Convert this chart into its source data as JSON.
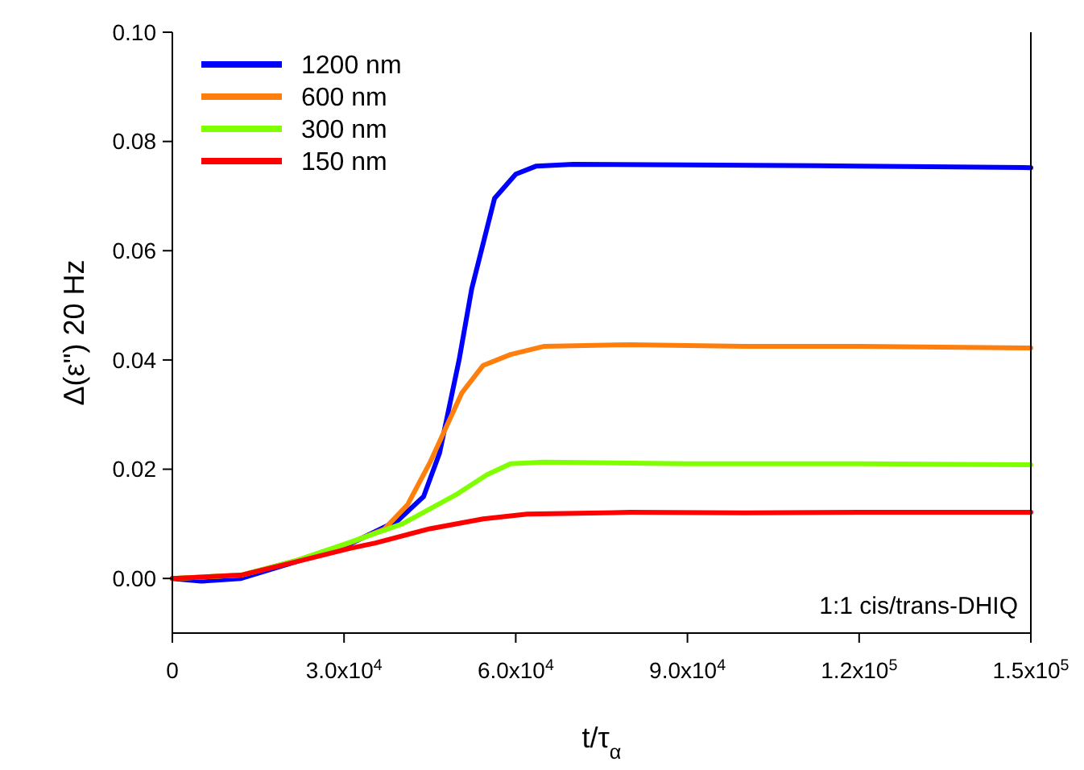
{
  "chart_data": {
    "type": "line",
    "xlabel": "t/τ$_{α}$",
    "ylabel": "Δ(ε\") 20 Hz",
    "xlim": [
      0,
      150000
    ],
    "ylim": [
      -0.01,
      0.1
    ],
    "xticks": [
      0,
      {
        "value": 30000,
        "label": "3.0x10$^{4}$"
      },
      {
        "value": 60000,
        "label": "6.0x10$^{4}$"
      },
      {
        "value": 90000,
        "label": "9.0x10$^{4}$"
      },
      {
        "value": 120000,
        "label": "1.2x10$^{5}$"
      },
      {
        "value": 150000,
        "label": "1.5x10$^{5}$"
      }
    ],
    "yticks": [
      {
        "value": 0,
        "label": "0.00"
      },
      {
        "value": 0.02,
        "label": "0.02"
      },
      {
        "value": 0.04,
        "label": "0.04"
      },
      {
        "value": 0.06,
        "label": "0.06"
      },
      {
        "value": 0.08,
        "label": "0.08"
      },
      {
        "value": 0.1,
        "label": "0.10"
      }
    ],
    "legend": "top left",
    "grid": false,
    "marker": "none",
    "line_style": "solid",
    "annotations": [
      "1:1 cis/trans-DHIQ"
    ],
    "series": [
      {
        "name": "1200 nm",
        "color": "#0000ff",
        "x": [
          0,
          5000,
          12000,
          21400,
          31000,
          39400,
          43900,
          46700,
          50100,
          52300,
          56300,
          60000,
          63600,
          70000,
          90000,
          120000,
          150000
        ],
        "values": [
          0,
          -0.0005,
          0,
          0.003,
          0.0063,
          0.0106,
          0.015,
          0.023,
          0.04,
          0.053,
          0.0696,
          0.074,
          0.0755,
          0.0758,
          0.0757,
          0.0755,
          0.0752
        ]
      },
      {
        "name": "600 nm",
        "color": "#ff7f0e",
        "x": [
          0,
          12000,
          21400,
          31000,
          37000,
          41100,
          45000,
          50600,
          54300,
          59100,
          65000,
          80000,
          100000,
          120000,
          150000
        ],
        "values": [
          0,
          0.0006,
          0.0032,
          0.0065,
          0.009,
          0.0135,
          0.0212,
          0.034,
          0.039,
          0.041,
          0.0425,
          0.0428,
          0.0425,
          0.0425,
          0.0422
        ]
      },
      {
        "name": "300 nm",
        "color": "#7fff00",
        "x": [
          0,
          12000,
          21400,
          31000,
          40200,
          49500,
          55000,
          59100,
          65000,
          90000,
          120000,
          150000
        ],
        "values": [
          0,
          0.0006,
          0.0032,
          0.0066,
          0.01,
          0.0153,
          0.019,
          0.021,
          0.0213,
          0.021,
          0.021,
          0.0208
        ]
      },
      {
        "name": "150 nm",
        "color": "#ff0000",
        "x": [
          0,
          12000,
          21400,
          31000,
          35500,
          45000,
          54300,
          62000,
          80000,
          100000,
          120000,
          150000
        ],
        "values": [
          0,
          0.0006,
          0.003,
          0.0055,
          0.0065,
          0.0091,
          0.0109,
          0.0118,
          0.0121,
          0.012,
          0.0121,
          0.0121
        ]
      }
    ]
  }
}
